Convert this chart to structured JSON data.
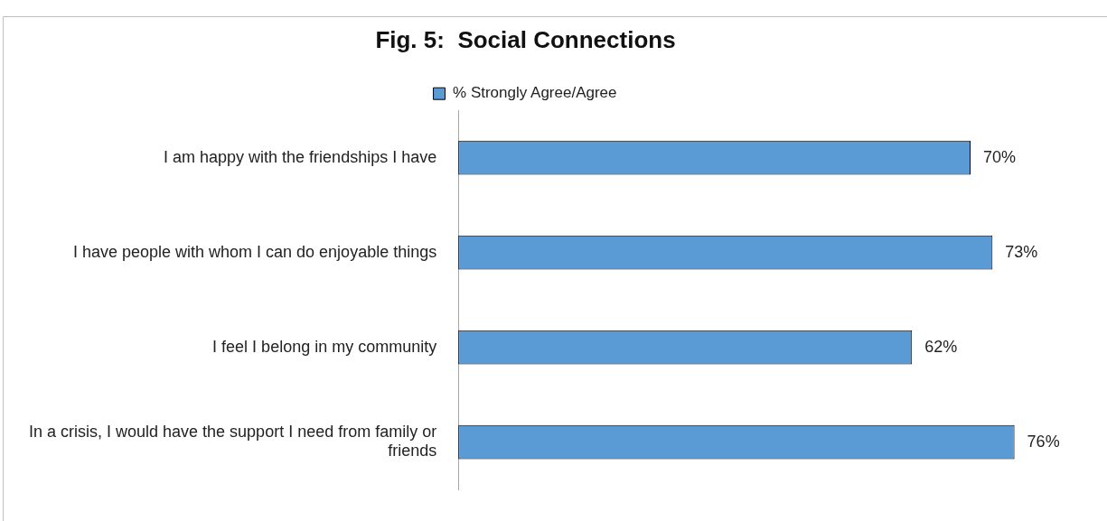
{
  "chart_data": {
    "type": "bar",
    "orientation": "horizontal",
    "title": "Fig. 5:  Social Connections",
    "categories": [
      "I am happy with the friendships I have",
      "I have people with whom I can do enjoyable things",
      "I feel I belong in my community",
      "In a crisis, I would have the support I need from family or friends"
    ],
    "series": [
      {
        "name": "% Strongly Agree/Agree",
        "color": "#5b9bd5",
        "values": [
          70,
          73,
          62,
          76
        ],
        "value_labels": [
          "70%",
          "73%",
          "62%",
          "76%"
        ]
      }
    ],
    "legend": "top"
  }
}
